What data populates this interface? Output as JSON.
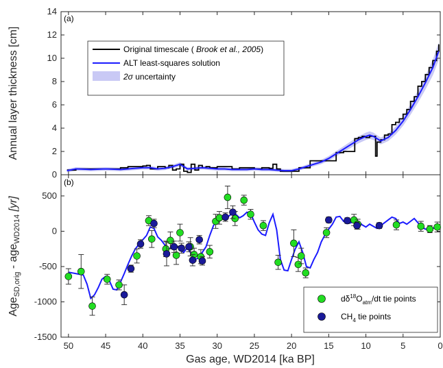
{
  "chart_data": [
    {
      "panel": "(a)",
      "type": "line",
      "ylabel": "Annual layer thickness [cm]",
      "ylim": [
        0,
        14
      ],
      "yticks": [
        0,
        2,
        4,
        6,
        8,
        10,
        12,
        14
      ],
      "xlim": [
        51,
        0
      ],
      "x_reversed": true,
      "legend_position": "upper-left",
      "legend": [
        {
          "label": "Original timescale ( Brook et al., 2005)",
          "color": "#000000",
          "kind": "line"
        },
        {
          "label": "ALT least-squares solution",
          "color": "#1a1aff",
          "kind": "line"
        },
        {
          "label": "2σ uncertainty",
          "color": "#c9c9f5",
          "kind": "patch"
        }
      ],
      "series": [
        {
          "name": "Original timescale ( Brook et al., 2005)",
          "color": "#000000",
          "x": [
            50.2,
            49,
            47,
            46,
            45,
            44,
            43,
            42,
            41,
            40,
            39.5,
            39,
            38,
            37,
            36.5,
            36,
            35.5,
            35,
            34.5,
            34,
            33.5,
            33,
            32.5,
            32,
            31.5,
            31,
            30,
            29,
            28,
            27,
            26,
            25,
            24,
            23,
            22.5,
            22,
            21.5,
            21,
            20,
            19.5,
            19,
            18,
            17.5,
            17,
            16,
            15,
            14,
            13,
            12,
            11.5,
            11,
            10.5,
            10,
            9.5,
            9,
            8.7,
            8.5,
            8,
            7.5,
            7,
            6.5,
            6,
            5.5,
            5,
            4.5,
            4,
            3.5,
            3,
            2.5,
            2,
            1.5,
            1,
            0.5,
            0.2
          ],
          "y": [
            0.4,
            0.5,
            0.5,
            0.5,
            0.5,
            0.5,
            0.6,
            0.7,
            0.7,
            0.75,
            0.8,
            0.5,
            0.7,
            0.6,
            0.8,
            0.4,
            0.5,
            0.9,
            0.3,
            0.2,
            0.9,
            0.4,
            0.8,
            0.6,
            0.7,
            0.6,
            0.7,
            0.7,
            0.5,
            0.6,
            0.6,
            0.5,
            0.6,
            0.55,
            0.9,
            0.5,
            0.3,
            0.3,
            0.3,
            0.3,
            0.6,
            0.6,
            1.2,
            1.2,
            1.2,
            1.2,
            1.9,
            2.0,
            2.0,
            3.1,
            3.2,
            3.3,
            3.2,
            3.3,
            3.3,
            1.6,
            2.8,
            3.0,
            3.4,
            3.5,
            4.3,
            4.5,
            4.8,
            5.2,
            5.6,
            6.3,
            6.7,
            7.6,
            8.0,
            8.6,
            9.2,
            9.8,
            10.6,
            11.2
          ]
        },
        {
          "name": "ALT least-squares solution",
          "color": "#1a1aff",
          "x": [
            50.2,
            49,
            47,
            45,
            43,
            42,
            41,
            40,
            39,
            38,
            37,
            36,
            35.5,
            35,
            34,
            33,
            32,
            31,
            30,
            29,
            28,
            27,
            26,
            25,
            24,
            23,
            22,
            21,
            20,
            19,
            18,
            17,
            16,
            15,
            14,
            13,
            12,
            11,
            10,
            9.5,
            9,
            8.5,
            8,
            7,
            6,
            5,
            4,
            3,
            2,
            1,
            0.2
          ],
          "y": [
            0.35,
            0.5,
            0.45,
            0.5,
            0.45,
            0.5,
            0.55,
            0.6,
            0.6,
            0.5,
            0.55,
            0.7,
            0.8,
            0.9,
            0.5,
            0.55,
            0.6,
            0.55,
            0.5,
            0.5,
            0.45,
            0.45,
            0.45,
            0.5,
            0.45,
            0.45,
            0.4,
            0.35,
            0.35,
            0.5,
            0.7,
            0.9,
            1.1,
            1.4,
            1.8,
            2.2,
            2.6,
            3.0,
            3.3,
            3.4,
            3.3,
            3.1,
            2.9,
            3.2,
            3.8,
            4.6,
            5.6,
            6.7,
            7.9,
            9.2,
            10.6
          ]
        }
      ]
    },
    {
      "panel": "(b)",
      "type": "scatter",
      "ylabel": "Age SD,orig - age WD2014 [yr]",
      "xlabel": "Gas age, WD2014 [ka BP]",
      "ylim": [
        -1500,
        800
      ],
      "yticks": [
        500,
        0,
        -500,
        -1000,
        -1500
      ],
      "xlim": [
        51,
        0
      ],
      "xticks": [
        50,
        45,
        40,
        35,
        30,
        25,
        20,
        15,
        10,
        5,
        0
      ],
      "x_reversed": true,
      "legend_position": "lower-right",
      "legend": [
        {
          "label": "dδ18Oatm/dt tie points",
          "color": "#22dd22",
          "kind": "marker"
        },
        {
          "label": "CH4 tie points",
          "color": "#1a1a99",
          "kind": "marker"
        }
      ],
      "series": [
        {
          "name": "ALT least-squares solution",
          "color": "#1a1aff",
          "kind": "line",
          "x": [
            50,
            49,
            48,
            47.5,
            47,
            46.5,
            46,
            45.5,
            45,
            44.5,
            44,
            43.5,
            43,
            42.5,
            42,
            41.5,
            41,
            40.5,
            40,
            39.5,
            39,
            38.5,
            38,
            37.5,
            37,
            36.5,
            36,
            35.5,
            35,
            34.5,
            34,
            33.5,
            33,
            32.5,
            32,
            31.5,
            31,
            30.5,
            30,
            29.5,
            29,
            28.5,
            28,
            27.5,
            27,
            26.5,
            26,
            25.5,
            25,
            24.5,
            24,
            23.5,
            23,
            22.5,
            22,
            21.5,
            21,
            20.5,
            20,
            19.5,
            19,
            18.5,
            18,
            17.5,
            17,
            16.5,
            16,
            15.5,
            15,
            14.5,
            14,
            13.5,
            13,
            12.5,
            12,
            11.5,
            11,
            10.5,
            10,
            9.5,
            9,
            8.5,
            8,
            7.5,
            7,
            6.5,
            6,
            5.5,
            5,
            4.5,
            4,
            3.5,
            3,
            2.5,
            2,
            1.5,
            1,
            0.5,
            0.2
          ],
          "y": [
            -580,
            -600,
            -620,
            -750,
            -950,
            -900,
            -800,
            -680,
            -640,
            -700,
            -820,
            -830,
            -720,
            -600,
            -470,
            -350,
            -250,
            -180,
            -120,
            -60,
            60,
            40,
            -80,
            -130,
            -200,
            -250,
            -220,
            -200,
            -260,
            -300,
            -230,
            -320,
            -400,
            -380,
            -300,
            -220,
            -60,
            80,
            150,
            190,
            160,
            210,
            250,
            240,
            190,
            220,
            270,
            250,
            130,
            20,
            -40,
            -60,
            120,
            240,
            20,
            -400,
            -550,
            -560,
            -400,
            -250,
            -150,
            -300,
            -500,
            -520,
            -400,
            -300,
            -150,
            -50,
            30,
            100,
            200,
            210,
            140,
            110,
            120,
            160,
            140,
            90,
            60,
            100,
            70,
            40,
            80,
            120,
            160,
            200,
            180,
            110,
            130,
            100,
            140,
            180,
            120,
            60,
            30,
            30,
            40,
            60,
            50
          ]
        },
        {
          "name": "dδ18Oatm/dt tie points",
          "color": "#22dd22",
          "kind": "marker",
          "points": [
            {
              "x": 50.0,
              "y": -640,
              "err": 110
            },
            {
              "x": 48.3,
              "y": -570,
              "err": 240
            },
            {
              "x": 46.8,
              "y": -1060,
              "err": 130
            },
            {
              "x": 44.8,
              "y": -680,
              "err": 70
            },
            {
              "x": 43.2,
              "y": -760,
              "err": 70
            },
            {
              "x": 40.8,
              "y": -350,
              "err": 100
            },
            {
              "x": 39.2,
              "y": 150,
              "err": 70
            },
            {
              "x": 38.8,
              "y": -110,
              "err": 120
            },
            {
              "x": 36.9,
              "y": -250,
              "err": 110
            },
            {
              "x": 36.3,
              "y": -130,
              "err": 120
            },
            {
              "x": 35.5,
              "y": -340,
              "err": 130
            },
            {
              "x": 35.0,
              "y": -20,
              "err": 120
            },
            {
              "x": 33.6,
              "y": -220,
              "err": 130
            },
            {
              "x": 33.1,
              "y": -330,
              "err": 90
            },
            {
              "x": 32.2,
              "y": -360,
              "err": 100
            },
            {
              "x": 31.0,
              "y": -290,
              "err": 90
            },
            {
              "x": 30.2,
              "y": 140,
              "err": 100
            },
            {
              "x": 29.7,
              "y": 190,
              "err": 90
            },
            {
              "x": 28.6,
              "y": 480,
              "err": 160
            },
            {
              "x": 27.6,
              "y": 180,
              "err": 100
            },
            {
              "x": 26.4,
              "y": 440,
              "err": 70
            },
            {
              "x": 25.5,
              "y": 240,
              "err": 70
            },
            {
              "x": 23.8,
              "y": 80,
              "err": 70
            },
            {
              "x": 21.8,
              "y": -440,
              "err": 100
            },
            {
              "x": 19.7,
              "y": -170,
              "err": 190
            },
            {
              "x": 19.1,
              "y": -470,
              "err": 100
            },
            {
              "x": 18.7,
              "y": -350,
              "err": 110
            },
            {
              "x": 18.1,
              "y": -590,
              "err": 70
            },
            {
              "x": 15.3,
              "y": -20,
              "err": 70
            },
            {
              "x": 11.6,
              "y": 160,
              "err": 80
            },
            {
              "x": 11.1,
              "y": 100,
              "err": 70
            },
            {
              "x": 5.9,
              "y": 90,
              "err": 70
            },
            {
              "x": 2.6,
              "y": 70,
              "err": 70
            },
            {
              "x": 1.4,
              "y": 30,
              "err": 50
            },
            {
              "x": 0.4,
              "y": 60,
              "err": 70
            }
          ]
        },
        {
          "name": "CH4 tie points",
          "color": "#1a1a99",
          "kind": "marker",
          "points": [
            {
              "x": 42.5,
              "y": -900,
              "err": 140
            },
            {
              "x": 41.6,
              "y": -530,
              "err": 50
            },
            {
              "x": 40.3,
              "y": -180,
              "err": 60
            },
            {
              "x": 38.5,
              "y": 110,
              "err": 60
            },
            {
              "x": 36.8,
              "y": -320,
              "err": 170
            },
            {
              "x": 35.8,
              "y": -220,
              "err": 80
            },
            {
              "x": 34.8,
              "y": -240,
              "err": 70
            },
            {
              "x": 33.8,
              "y": -220,
              "err": 70
            },
            {
              "x": 33.3,
              "y": -410,
              "err": 80
            },
            {
              "x": 32.4,
              "y": -120,
              "err": 60
            },
            {
              "x": 32.0,
              "y": -420,
              "err": 60
            },
            {
              "x": 28.9,
              "y": 200,
              "err": 60
            },
            {
              "x": 27.9,
              "y": 270,
              "err": 90
            },
            {
              "x": 15.0,
              "y": 160,
              "err": 40
            },
            {
              "x": 12.5,
              "y": 150,
              "err": 40
            },
            {
              "x": 11.2,
              "y": 80,
              "err": 50
            },
            {
              "x": 8.2,
              "y": 80,
              "err": 40
            }
          ]
        }
      ]
    }
  ],
  "labels": {
    "panel_a": "(a)",
    "panel_b": "(b)",
    "ylabel_a": "Annual layer thickness [cm]",
    "ylabel_b_main": "Age",
    "ylabel_b_sub1": "SD,orig",
    "ylabel_b_mid": " - age",
    "ylabel_b_sub2": "WD2014",
    "ylabel_b_unit": " [yr]",
    "xlabel": "Gas age, WD2014 [ka BP]",
    "legend_a": {
      "line1_pre": "Original timescale ( ",
      "line1_italic": "Brook et al., 2005",
      "line1_post": ")",
      "line2": "ALT least-squares solution",
      "line3_sigma": "2σ",
      "line3_rest": " uncertainty"
    },
    "legend_b": {
      "line1_d": "dδ",
      "line1_sup": "18",
      "line1_o": "O",
      "line1_sub": "atm",
      "line1_rest": "/dt tie points",
      "line2_ch": "CH",
      "line2_sub": "4",
      "line2_rest": " tie points"
    }
  }
}
